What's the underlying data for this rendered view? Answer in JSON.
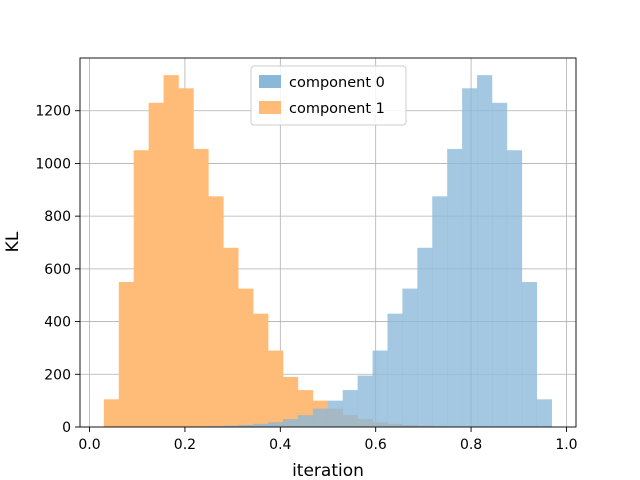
{
  "chart_data": {
    "type": "histogram",
    "title": "",
    "xlabel": "iteration",
    "ylabel": "KL",
    "xlim": [
      -0.02,
      1.02
    ],
    "ylim": [
      0,
      1400
    ],
    "xticks": [
      0.0,
      0.2,
      0.4,
      0.6,
      0.8,
      1.0
    ],
    "xtick_labels": [
      "0.0",
      "0.2",
      "0.4",
      "0.6",
      "0.8",
      "1.0"
    ],
    "yticks": [
      0,
      200,
      400,
      600,
      800,
      1000,
      1200
    ],
    "ytick_labels": [
      "0",
      "200",
      "400",
      "600",
      "800",
      "1000",
      "1200"
    ],
    "grid": true,
    "legend_position": "top-center",
    "bin_edges_start": 0.03,
    "bin_width": 0.0313,
    "series": [
      {
        "name": "component 1",
        "color": "#ffbb78",
        "values": [
          105,
          550,
          1050,
          1230,
          1335,
          1285,
          1055,
          875,
          680,
          525,
          430,
          290,
          190,
          140,
          100,
          70,
          45,
          30,
          18,
          12,
          8,
          5,
          3,
          2,
          1,
          0,
          0,
          0,
          0,
          0
        ]
      },
      {
        "name": "component 0",
        "color": "#8ab8d9",
        "values": [
          0,
          0,
          0,
          0,
          0,
          1,
          2,
          3,
          5,
          8,
          12,
          18,
          30,
          45,
          70,
          100,
          140,
          195,
          290,
          430,
          525,
          680,
          875,
          1055,
          1285,
          1335,
          1230,
          1050,
          550,
          105
        ]
      }
    ]
  }
}
